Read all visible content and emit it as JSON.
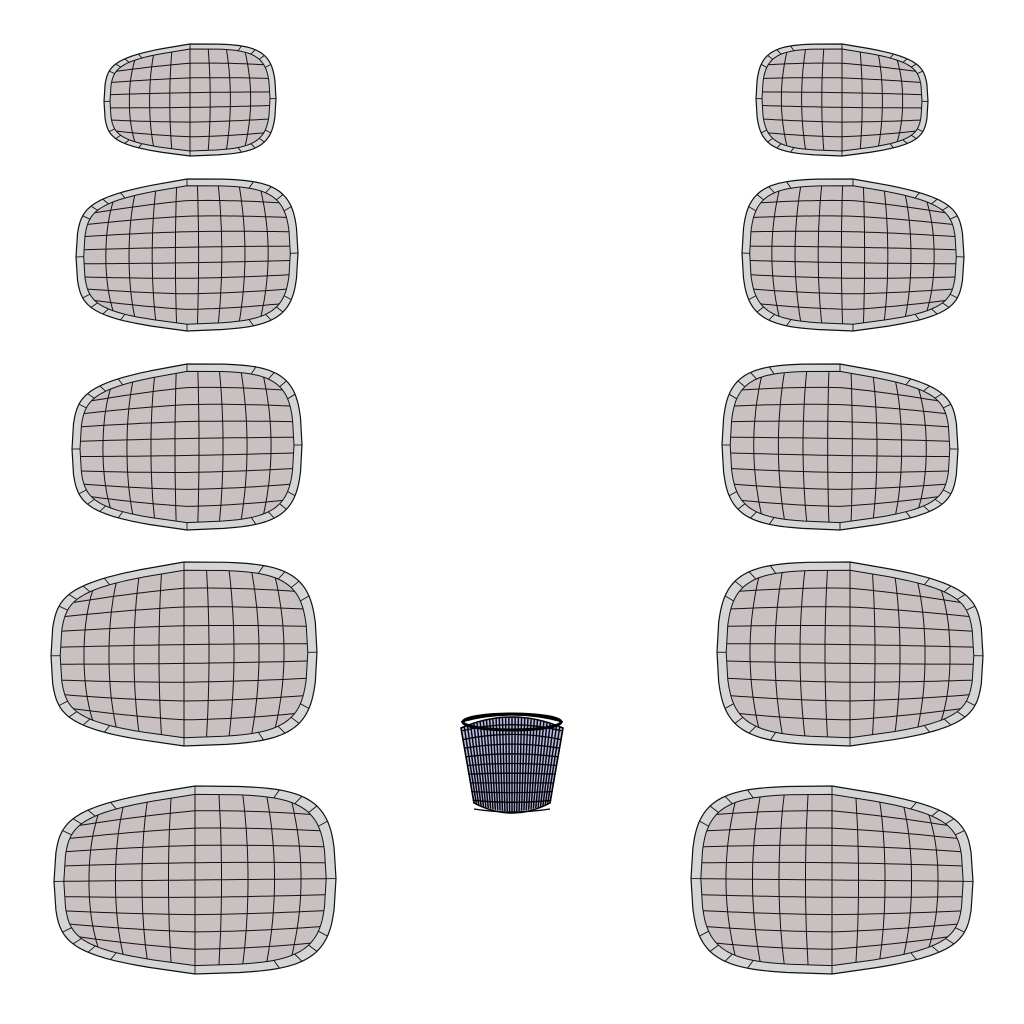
{
  "scene": {
    "background": "#ffffff",
    "patch_fill": "#c9c1c1",
    "patch_fill_light": "#d5d5d5",
    "wire_color": "#111111",
    "cup_fill": "#b8b8e6",
    "cup_wire": "#000000",
    "patches": [
      {
        "name": "patch-left-1",
        "cols": 8,
        "rows": 7
      },
      {
        "name": "patch-left-2",
        "cols": 9,
        "rows": 9
      },
      {
        "name": "patch-left-3",
        "cols": 9,
        "rows": 9
      },
      {
        "name": "patch-left-4",
        "cols": 10,
        "rows": 9
      },
      {
        "name": "patch-left-5",
        "cols": 10,
        "rows": 10
      },
      {
        "name": "patch-right-1",
        "cols": 8,
        "rows": 7
      },
      {
        "name": "patch-right-2",
        "cols": 9,
        "rows": 9
      },
      {
        "name": "patch-right-3",
        "cols": 9,
        "rows": 9
      },
      {
        "name": "patch-right-4",
        "cols": 10,
        "rows": 9
      },
      {
        "name": "patch-right-5",
        "cols": 10,
        "rows": 10
      }
    ],
    "cup": {
      "name": "center-cup-mesh",
      "cols": 16,
      "rows": 10
    }
  }
}
